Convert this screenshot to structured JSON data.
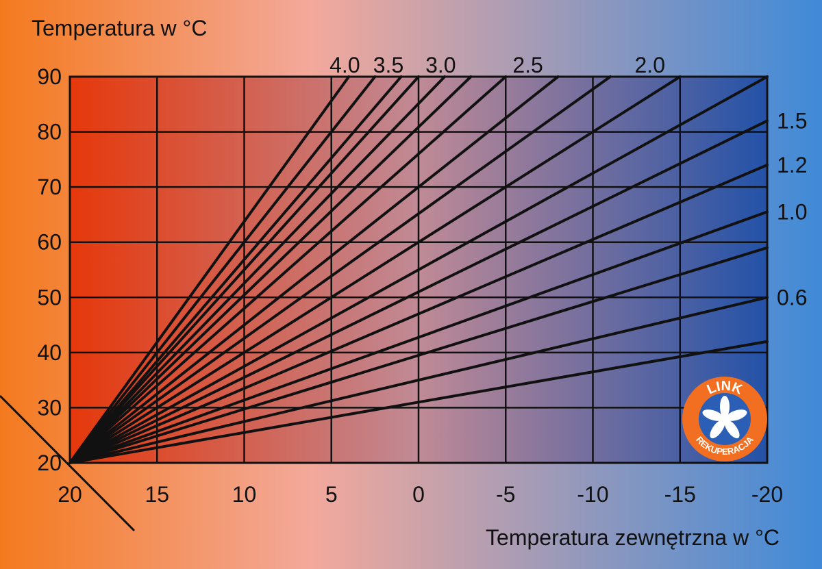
{
  "colors": {
    "bg_left": "#f47a1e",
    "bg_mid": "#f3a99c",
    "bg_right": "#3f8ad8",
    "plot_left": "#e6380b",
    "plot_mid": "#c08a96",
    "plot_right": "#2352a8",
    "line": "#111111",
    "logo_ring": "#f26f21",
    "logo_inner": "#2b5fb5"
  },
  "chart_data": {
    "type": "line",
    "title": "Temperatura w °C",
    "xlabel": "Temperatura zewnętrzna w °C",
    "ylabel": "Temperatura w °C",
    "x_ticks": [
      "20",
      "15",
      "10",
      "5",
      "0",
      "-5",
      "-10",
      "-15",
      "-20"
    ],
    "y_ticks": [
      "90",
      "80",
      "70",
      "60",
      "50",
      "40",
      "30",
      "20"
    ],
    "xlim": [
      20,
      -20
    ],
    "ylim": [
      20,
      90
    ],
    "grid": true,
    "origin": [
      20,
      20
    ],
    "series": [
      {
        "name": "4.0",
        "x": [
          20,
          2.5
        ],
        "y": [
          20,
          90
        ]
      },
      {
        "name": "3.5",
        "x": [
          20,
          0
        ],
        "y": [
          20,
          90
        ]
      },
      {
        "name": "3.0",
        "x": [
          20,
          -3
        ],
        "y": [
          20,
          90
        ]
      },
      {
        "name": "2.5",
        "x": [
          20,
          -8
        ],
        "y": [
          20,
          90
        ]
      },
      {
        "name": "2.0",
        "x": [
          20,
          -15
        ],
        "y": [
          20,
          90
        ]
      },
      {
        "name": "1.5",
        "x": [
          20,
          -20
        ],
        "y": [
          20,
          82
        ]
      },
      {
        "name": "1.2",
        "x": [
          20,
          -20
        ],
        "y": [
          20,
          74
        ]
      },
      {
        "name": "1.0",
        "x": [
          20,
          -20
        ],
        "y": [
          20,
          65.5
        ]
      },
      {
        "name": "0.6",
        "x": [
          20,
          -20
        ],
        "y": [
          20,
          50
        ]
      },
      {
        "x": [
          20,
          4
        ],
        "y": [
          20,
          90
        ]
      },
      {
        "x": [
          20,
          1
        ],
        "y": [
          20,
          90
        ]
      },
      {
        "x": [
          20,
          -1.5
        ],
        "y": [
          20,
          90
        ]
      },
      {
        "x": [
          20,
          -5
        ],
        "y": [
          20,
          90
        ]
      },
      {
        "x": [
          20,
          -11
        ],
        "y": [
          20,
          90
        ]
      },
      {
        "x": [
          20,
          -20
        ],
        "y": [
          20,
          90
        ]
      },
      {
        "x": [
          20,
          -20
        ],
        "y": [
          20,
          59
        ]
      },
      {
        "x": [
          20,
          -20
        ],
        "y": [
          20,
          42
        ]
      }
    ],
    "labels": [
      {
        "text": "4.0"
      },
      {
        "text": "3.5"
      },
      {
        "text": "3.0"
      },
      {
        "text": "2.5"
      },
      {
        "text": "2.0"
      },
      {
        "text": "1.5"
      },
      {
        "text": "1.2"
      },
      {
        "text": "1.0"
      },
      {
        "text": "0.6"
      }
    ]
  },
  "logo": {
    "top_text": "LINK",
    "bottom_text": "REKUPERACJA"
  }
}
